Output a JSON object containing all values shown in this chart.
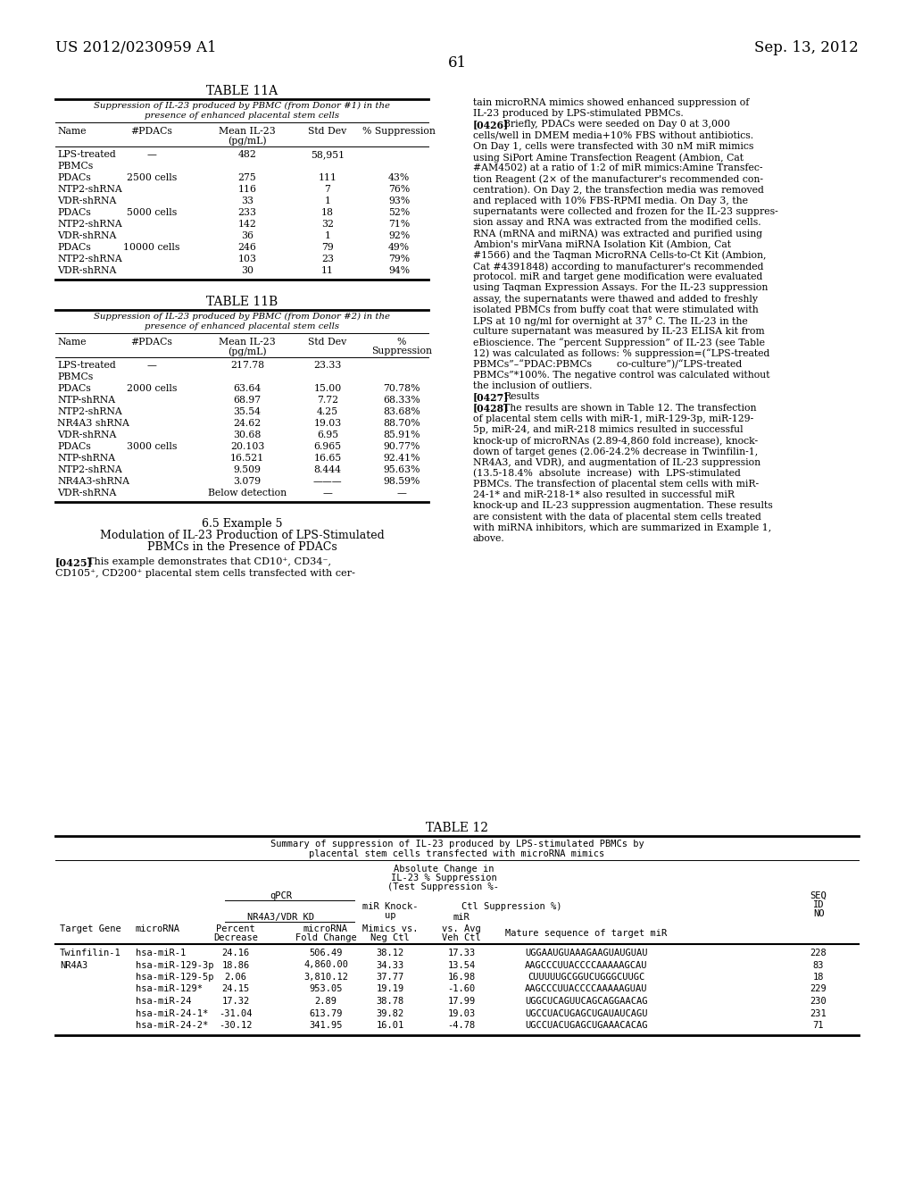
{
  "page_number": "61",
  "patent_number": "US 2012/0230959 A1",
  "patent_date": "Sep. 13, 2012",
  "table11a_title": "TABLE 11A",
  "table11a_subtitle1": "Suppression of IL-23 produced by PBMC (from Donor #1) in the",
  "table11a_subtitle2": "presence of enhanced placental stem cells",
  "table11a_rows": [
    [
      "LPS-treated",
      "—",
      "482",
      "58,951",
      ""
    ],
    [
      "PBMCs",
      "",
      "",
      "",
      ""
    ],
    [
      "PDACs",
      "2500 cells",
      "275",
      "111",
      "43%"
    ],
    [
      "NTP2-shRNA",
      "",
      "116",
      "7",
      "76%"
    ],
    [
      "VDR-shRNA",
      "",
      "33",
      "1",
      "93%"
    ],
    [
      "PDACs",
      "5000 cells",
      "233",
      "18",
      "52%"
    ],
    [
      "NTP2-shRNA",
      "",
      "142",
      "32",
      "71%"
    ],
    [
      "VDR-shRNA",
      "",
      "36",
      "1",
      "92%"
    ],
    [
      "PDACs",
      "10000 cells",
      "246",
      "79",
      "49%"
    ],
    [
      "NTP2-shRNA",
      "",
      "103",
      "23",
      "79%"
    ],
    [
      "VDR-shRNA",
      "",
      "30",
      "11",
      "94%"
    ]
  ],
  "table11b_title": "TABLE 11B",
  "table11b_subtitle1": "Suppression of IL-23 produced by PBMC (from Donor #2) in the",
  "table11b_subtitle2": "presence of enhanced placental stem cells",
  "table11b_rows": [
    [
      "LPS-treated",
      "—",
      "217.78",
      "23.33",
      ""
    ],
    [
      "PBMCs",
      "",
      "",
      "",
      ""
    ],
    [
      "PDACs",
      "2000 cells",
      "63.64",
      "15.00",
      "70.78%"
    ],
    [
      "NTP-shRNA",
      "",
      "68.97",
      "7.72",
      "68.33%"
    ],
    [
      "NTP2-shRNA",
      "",
      "35.54",
      "4.25",
      "83.68%"
    ],
    [
      "NR4A3 shRNA",
      "",
      "24.62",
      "19.03",
      "88.70%"
    ],
    [
      "VDR-shRNA",
      "",
      "30.68",
      "6.95",
      "85.91%"
    ],
    [
      "PDACs",
      "3000 cells",
      "20.103",
      "6.965",
      "90.77%"
    ],
    [
      "NTP-shRNA",
      "",
      "16.521",
      "16.65",
      "92.41%"
    ],
    [
      "NTP2-shRNA",
      "",
      "9.509",
      "8.444",
      "95.63%"
    ],
    [
      "NR4A3-shRNA",
      "",
      "3.079",
      "———",
      "98.59%"
    ],
    [
      "VDR-shRNA",
      "",
      "Below detection",
      "—",
      "—"
    ]
  ],
  "example_title": "6.5 Example 5",
  "example_subtitle1": "Modulation of IL-23 Production of LPS-Stimulated",
  "example_subtitle2": "PBMCs in the Presence of PDACs",
  "para0425_label": "[0425]",
  "para0425_text1": "This example demonstrates that CD10⁺, CD34⁻,",
  "para0425_text2": "CD105⁺, CD200⁺ placental stem cells transfected with cer-",
  "right_para1_line1": "tain microRNA mimics showed enhanced suppression of",
  "right_para1_line2": "IL-23 produced by LPS-stimulated PBMCs.",
  "para0426_label": "[0426]",
  "para0426_lines": [
    "Briefly, PDACs were seeded on Day 0 at 3,000",
    "cells/well in DMEM media+10% FBS without antibiotics.",
    "On Day 1, cells were transfected with 30 nM miR mimics",
    "using SiPort Amine Transfection Reagent (Ambion, Cat",
    "#AM4502) at a ratio of 1:2 of miR mimics:Amine Transfec-",
    "tion Reagent (2× of the manufacturer's recommended con-",
    "centration). On Day 2, the transfection media was removed",
    "and replaced with 10% FBS-RPMI media. On Day 3, the",
    "supernatants were collected and frozen for the IL-23 suppres-",
    "sion assay and RNA was extracted from the modified cells.",
    "RNA (mRNA and miRNA) was extracted and purified using",
    "Ambion's mirVana miRNA Isolation Kit (Ambion, Cat",
    "#1566) and the Taqman MicroRNA Cells-to-Ct Kit (Ambion,",
    "Cat #4391848) according to manufacturer's recommended",
    "protocol. miR and target gene modification were evaluated",
    "using Taqman Expression Assays. For the IL-23 suppression",
    "assay, the supernatants were thawed and added to freshly",
    "isolated PBMCs from buffy coat that were stimulated with",
    "LPS at 10 ng/ml for overnight at 37° C. The IL-23 in the",
    "culture supernatant was measured by IL-23 ELISA kit from",
    "eBioscience. The “percent Suppression” of IL-23 (see Table",
    "12) was calculated as follows: % suppression=(“LPS-treated",
    "PBMCs”–“PDAC:PBMCs        co-culture”)/“LPS-treated",
    "PBMCs”*100%. The negative control was calculated without",
    "the inclusion of outliers."
  ],
  "para0427_label": "[0427]",
  "para0427_text": "Results",
  "para0428_label": "[0428]",
  "para0428_lines": [
    "The results are shown in Table 12. The transfection",
    "of placental stem cells with miR-1, miR-129-3p, miR-129-",
    "5p, miR-24, and miR-218 mimics resulted in successful",
    "knock-up of microRNAs (2.89-4,860 fold increase), knock-",
    "down of target genes (2.06-24.2% decrease in Twinfilin-1,",
    "NR4A3, and VDR), and augmentation of IL-23 suppression",
    "(13.5-18.4%  absolute  increase)  with  LPS-stimulated",
    "PBMCs. The transfection of placental stem cells with miR-",
    "24-1* and miR-218-1* also resulted in successful miR",
    "knock-up and IL-23 suppression augmentation. These results",
    "are consistent with the data of placental stem cells treated",
    "with miRNA inhibitors, which are summarized in Example 1,",
    "above."
  ],
  "table12_title": "TABLE 12",
  "table12_subtitle1": "Summary of suppression of IL-23 produced by LPS-stimulated PBMCs by",
  "table12_subtitle2": "placental stem cells transfected with microRNA mimics",
  "table12_rows": [
    [
      "Twinfilin-1",
      "hsa-miR-1",
      "24.16",
      "506.49",
      "38.12",
      "17.33",
      "UGGAAUGUAAAGAAGUAUGUAU",
      "228"
    ],
    [
      "NR4A3",
      "hsa-miR-129-3p",
      "18.86",
      "4,860.00",
      "34.33",
      "13.54",
      "AAGCCCUUACCCCAAAAAGCAU",
      "83"
    ],
    [
      "",
      "hsa-miR-129-5p",
      "2.06",
      "3,810.12",
      "37.77",
      "16.98",
      "CUUUUUGCGGUCUGGGCUUGC",
      "18"
    ],
    [
      "",
      "hsa-miR-129*",
      "24.15",
      "953.05",
      "19.19",
      "-1.60",
      "AAGCCCUUACCCCAAAAAGUAU",
      "229"
    ],
    [
      "",
      "hsa-miR-24",
      "17.32",
      "2.89",
      "38.78",
      "17.99",
      "UGGCUCAGUUCAGCAGGAACAG",
      "230"
    ],
    [
      "",
      "hsa-miR-24-1*",
      "-31.04",
      "613.79",
      "39.82",
      "19.03",
      "UGCCUACUGAGCUGAUAUCAGU",
      "231"
    ],
    [
      "",
      "hsa-miR-24-2*",
      "-30.12",
      "341.95",
      "16.01",
      "-4.78",
      "UGCCUACUGAGCUGAAACACAG",
      "71"
    ]
  ],
  "bg_color": "#ffffff",
  "text_color": "#000000",
  "font_family": "DejaVu Serif"
}
